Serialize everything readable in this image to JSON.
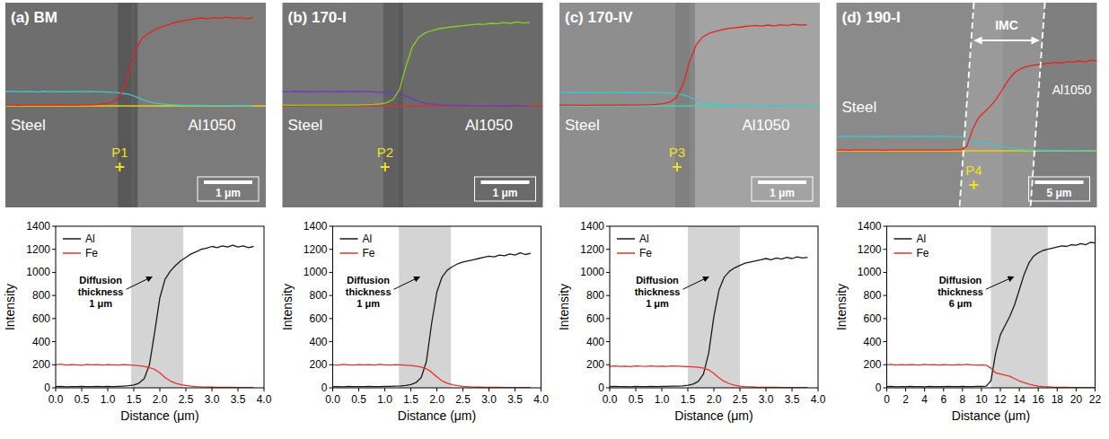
{
  "panels": [
    {
      "label": "(a) BM",
      "left_label": "Steel",
      "right_label": "Al1050",
      "point": "P1",
      "scale_bar": "1 μm",
      "colors": [
        "#e8231c",
        "#3fc6cc",
        "#e8d000"
      ]
    },
    {
      "label": "(b) 170-I",
      "left_label": "Steel",
      "right_label": "Al1050",
      "point": "P2",
      "scale_bar": "1 μm",
      "colors": [
        "#86d21e",
        "#6a3cc4",
        "#e03030"
      ]
    },
    {
      "label": "(c) 170-IV",
      "left_label": "Steel",
      "right_label": "Al1050",
      "point": "P3",
      "scale_bar": "1 μm",
      "colors": [
        "#e8231c",
        "#3fc6cc",
        "#34d8a8"
      ]
    },
    {
      "label": "(d) 190-I",
      "left_label": "Steel",
      "right_label": "Al1050",
      "point": "P4",
      "scale_bar": "5 μm",
      "region_label": "IMC",
      "colors": [
        "#e8231c",
        "#3fc6cc",
        "#e8d000"
      ]
    }
  ],
  "chart_data": [
    {
      "type": "line",
      "xlabel": "Distance (μm)",
      "ylabel": "Intensity",
      "legend": "upper left",
      "x": [
        0,
        0.1,
        0.2,
        0.3,
        0.4,
        0.5,
        0.6,
        0.7,
        0.8,
        0.9,
        1,
        1.1,
        1.2,
        1.3,
        1.4,
        1.5,
        1.6,
        1.7,
        1.8,
        1.9,
        2,
        2.1,
        2.2,
        2.3,
        2.4,
        2.5,
        2.6,
        2.7,
        2.8,
        2.9,
        3,
        3.1,
        3.2,
        3.3,
        3.4,
        3.5,
        3.6,
        3.7,
        3.8
      ],
      "series": [
        {
          "name": "Al",
          "color": "#1a1a1a",
          "values": [
            10,
            12,
            9,
            11,
            10,
            12,
            10,
            11,
            13,
            10,
            12,
            11,
            13,
            15,
            18,
            25,
            40,
            80,
            200,
            480,
            780,
            940,
            1010,
            1060,
            1100,
            1130,
            1160,
            1180,
            1200,
            1210,
            1225,
            1215,
            1230,
            1220,
            1235,
            1220,
            1230,
            1215,
            1225
          ]
        },
        {
          "name": "Fe",
          "color": "#e8302a",
          "values": [
            200,
            205,
            198,
            202,
            200,
            196,
            203,
            199,
            201,
            197,
            202,
            200,
            198,
            201,
            199,
            196,
            192,
            185,
            175,
            160,
            130,
            90,
            60,
            40,
            28,
            20,
            14,
            10,
            8,
            7,
            6,
            5,
            5,
            4,
            4,
            3,
            3,
            3,
            2
          ]
        }
      ],
      "xlim": [
        0,
        4
      ],
      "ylim": [
        0,
        1400
      ],
      "xticks": [
        {
          "value": 0,
          "label": "0.0"
        },
        {
          "value": 0.5,
          "label": "0.5"
        },
        {
          "value": 1,
          "label": "1.0"
        },
        {
          "value": 1.5,
          "label": "1.5"
        },
        {
          "value": 2,
          "label": "2.0"
        },
        {
          "value": 2.5,
          "label": "2.5"
        },
        {
          "value": 3,
          "label": "3.0"
        },
        {
          "value": 3.5,
          "label": "3.5"
        },
        {
          "value": 4,
          "label": "4.0"
        }
      ],
      "yticks": [
        0,
        200,
        400,
        600,
        800,
        1000,
        1200,
        1400
      ],
      "shaded_range": [
        1.45,
        2.45
      ],
      "annotation": [
        "Diffusion",
        "thickness",
        "1 μm"
      ]
    },
    {
      "type": "line",
      "xlabel": "Distance (μm)",
      "ylabel": "Intensity",
      "legend": "upper left",
      "x": [
        0,
        0.1,
        0.2,
        0.3,
        0.4,
        0.5,
        0.6,
        0.7,
        0.8,
        0.9,
        1,
        1.1,
        1.2,
        1.3,
        1.4,
        1.5,
        1.6,
        1.7,
        1.8,
        1.9,
        2,
        2.1,
        2.2,
        2.3,
        2.4,
        2.5,
        2.6,
        2.7,
        2.8,
        2.9,
        3,
        3.1,
        3.2,
        3.3,
        3.4,
        3.5,
        3.6,
        3.7,
        3.8
      ],
      "series": [
        {
          "name": "Al",
          "color": "#1a1a1a",
          "values": [
            10,
            11,
            9,
            12,
            10,
            11,
            10,
            12,
            11,
            10,
            13,
            12,
            14,
            16,
            20,
            28,
            45,
            90,
            230,
            560,
            830,
            960,
            1020,
            1050,
            1075,
            1090,
            1100,
            1110,
            1120,
            1130,
            1140,
            1135,
            1150,
            1145,
            1160,
            1150,
            1170,
            1155,
            1165
          ]
        },
        {
          "name": "Fe",
          "color": "#e8302a",
          "values": [
            200,
            198,
            203,
            200,
            197,
            202,
            199,
            201,
            198,
            203,
            200,
            197,
            201,
            199,
            196,
            193,
            188,
            180,
            165,
            135,
            95,
            60,
            40,
            26,
            18,
            12,
            9,
            7,
            6,
            5,
            5,
            4,
            4,
            3,
            3,
            3,
            2,
            2,
            2
          ]
        }
      ],
      "xlim": [
        0,
        4
      ],
      "ylim": [
        0,
        1400
      ],
      "xticks": [
        {
          "value": 0,
          "label": "0.0"
        },
        {
          "value": 0.5,
          "label": "0.5"
        },
        {
          "value": 1,
          "label": "1.0"
        },
        {
          "value": 1.5,
          "label": "1.5"
        },
        {
          "value": 2,
          "label": "2.0"
        },
        {
          "value": 2.5,
          "label": "2.5"
        },
        {
          "value": 3,
          "label": "3.0"
        },
        {
          "value": 3.5,
          "label": "3.5"
        },
        {
          "value": 4,
          "label": "4.0"
        }
      ],
      "yticks": [
        0,
        200,
        400,
        600,
        800,
        1000,
        1200,
        1400
      ],
      "shaded_range": [
        1.27,
        2.27
      ],
      "annotation": [
        "Diffusion",
        "thickness",
        "1 μm"
      ]
    },
    {
      "type": "line",
      "xlabel": "Distance (μm)",
      "ylabel": "Intensity",
      "legend": "upper left",
      "x": [
        0,
        0.1,
        0.2,
        0.3,
        0.4,
        0.5,
        0.6,
        0.7,
        0.8,
        0.9,
        1,
        1.1,
        1.2,
        1.3,
        1.4,
        1.5,
        1.6,
        1.7,
        1.8,
        1.9,
        2,
        2.1,
        2.2,
        2.3,
        2.4,
        2.5,
        2.6,
        2.7,
        2.8,
        2.9,
        3,
        3.1,
        3.2,
        3.3,
        3.4,
        3.5,
        3.6,
        3.7,
        3.8
      ],
      "series": [
        {
          "name": "Al",
          "color": "#1a1a1a",
          "values": [
            10,
            12,
            10,
            11,
            9,
            12,
            11,
            10,
            12,
            11,
            13,
            12,
            14,
            15,
            17,
            22,
            32,
            55,
            120,
            300,
            620,
            850,
            960,
            1010,
            1040,
            1060,
            1080,
            1090,
            1100,
            1110,
            1120,
            1110,
            1125,
            1115,
            1130,
            1120,
            1135,
            1125,
            1130
          ]
        },
        {
          "name": "Fe",
          "color": "#e8302a",
          "values": [
            185,
            190,
            186,
            188,
            184,
            189,
            187,
            186,
            190,
            185,
            188,
            186,
            189,
            187,
            185,
            184,
            182,
            178,
            170,
            155,
            125,
            85,
            55,
            35,
            22,
            15,
            10,
            8,
            6,
            5,
            5,
            4,
            4,
            3,
            3,
            3,
            2,
            2,
            2
          ]
        }
      ],
      "xlim": [
        0,
        4
      ],
      "ylim": [
        0,
        1400
      ],
      "xticks": [
        {
          "value": 0,
          "label": "0.0"
        },
        {
          "value": 0.5,
          "label": "0.5"
        },
        {
          "value": 1,
          "label": "1.0"
        },
        {
          "value": 1.5,
          "label": "1.5"
        },
        {
          "value": 2,
          "label": "2.0"
        },
        {
          "value": 2.5,
          "label": "2.5"
        },
        {
          "value": 3,
          "label": "3.0"
        },
        {
          "value": 3.5,
          "label": "3.5"
        },
        {
          "value": 4,
          "label": "4.0"
        }
      ],
      "yticks": [
        0,
        200,
        400,
        600,
        800,
        1000,
        1200,
        1400
      ],
      "shaded_range": [
        1.5,
        2.5
      ],
      "annotation": [
        "Diffusion",
        "thickness",
        "1 μm"
      ]
    },
    {
      "type": "line",
      "xlabel": "Distance (μm)",
      "ylabel": "Intensity",
      "legend": "upper left",
      "x": [
        0,
        0.5,
        1,
        1.5,
        2,
        2.5,
        3,
        3.5,
        4,
        4.5,
        5,
        5.5,
        6,
        6.5,
        7,
        7.5,
        8,
        8.5,
        9,
        9.5,
        10,
        10.5,
        11,
        11.5,
        12,
        12.5,
        13,
        13.5,
        14,
        14.5,
        15,
        15.5,
        16,
        16.5,
        17,
        17.5,
        18,
        18.5,
        19,
        19.5,
        20,
        20.5,
        21,
        21.5,
        22
      ],
      "series": [
        {
          "name": "Al",
          "color": "#1a1a1a",
          "values": [
            10,
            12,
            9,
            11,
            10,
            12,
            10,
            11,
            9,
            12,
            10,
            11,
            10,
            12,
            11,
            10,
            12,
            11,
            10,
            12,
            13,
            15,
            60,
            300,
            460,
            540,
            620,
            720,
            850,
            980,
            1080,
            1140,
            1170,
            1190,
            1200,
            1210,
            1220,
            1230,
            1225,
            1240,
            1235,
            1250,
            1240,
            1260,
            1255
          ]
        },
        {
          "name": "Fe",
          "color": "#e8302a",
          "values": [
            200,
            203,
            198,
            201,
            199,
            202,
            200,
            197,
            203,
            199,
            201,
            198,
            202,
            200,
            197,
            201,
            199,
            203,
            200,
            198,
            199,
            196,
            170,
            130,
            120,
            110,
            100,
            80,
            60,
            45,
            32,
            22,
            15,
            10,
            8,
            6,
            5,
            4,
            4,
            3,
            3,
            2,
            2,
            2,
            2
          ]
        }
      ],
      "xlim": [
        0,
        22
      ],
      "ylim": [
        0,
        1400
      ],
      "xticks": [
        0,
        2,
        4,
        6,
        8,
        10,
        12,
        14,
        16,
        18,
        20,
        22
      ],
      "yticks": [
        0,
        200,
        400,
        600,
        800,
        1000,
        1200,
        1400
      ],
      "shaded_range": [
        11,
        17
      ],
      "annotation": [
        "Diffusion",
        "thickness",
        "6 μm"
      ]
    }
  ]
}
